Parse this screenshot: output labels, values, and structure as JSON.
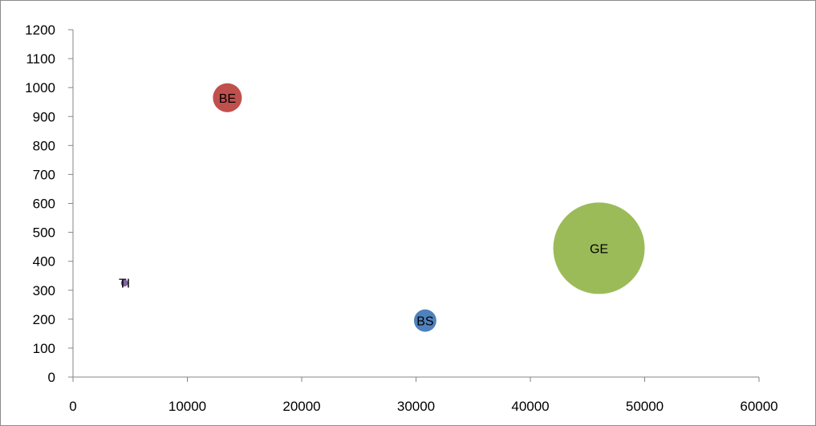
{
  "chart_data": {
    "type": "bubble",
    "title": "",
    "xlabel": "",
    "ylabel": "",
    "xlim": [
      0,
      60000
    ],
    "ylim": [
      0,
      1200
    ],
    "x_ticks": [
      0,
      10000,
      20000,
      30000,
      40000,
      50000,
      60000
    ],
    "y_ticks": [
      0,
      100,
      200,
      300,
      400,
      500,
      600,
      700,
      800,
      900,
      1000,
      1100,
      1200
    ],
    "grid": false,
    "legend": "none",
    "points": [
      {
        "label": "TI",
        "x": 4500,
        "y": 325,
        "size": 0.6,
        "color": "#8064a2"
      },
      {
        "label": "BE",
        "x": 13500,
        "y": 965,
        "size": 10,
        "color": "#c0504d"
      },
      {
        "label": "BS",
        "x": 30800,
        "y": 195,
        "size": 6,
        "color": "#4f81bd"
      },
      {
        "label": "GE",
        "x": 46000,
        "y": 445,
        "size": 100,
        "color": "#9bbb59"
      }
    ]
  }
}
